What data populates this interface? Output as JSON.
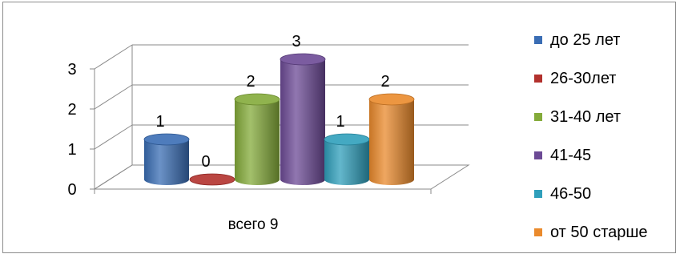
{
  "chart_data": {
    "type": "bar",
    "style": "3d-cylinder",
    "categories": [
      "всего 9"
    ],
    "series": [
      {
        "name": "до 25 лет",
        "values": [
          1
        ],
        "color": "#3a6db4"
      },
      {
        "name": "26-30лет",
        "values": [
          0
        ],
        "color": "#b2312d"
      },
      {
        "name": "31-40 лет",
        "values": [
          2
        ],
        "color": "#84ab3a"
      },
      {
        "name": "41-45",
        "values": [
          3
        ],
        "color": "#6c4a95"
      },
      {
        "name": "46-50",
        "values": [
          1
        ],
        "color": "#2f9fbb"
      },
      {
        "name": "от 50 старше",
        "values": [
          2
        ],
        "color": "#ea8a2c"
      }
    ],
    "yticks": [
      "0",
      "1",
      "2",
      "3"
    ],
    "ylim": [
      0,
      3
    ],
    "grid": true,
    "legend": "right",
    "data_labels": true
  }
}
